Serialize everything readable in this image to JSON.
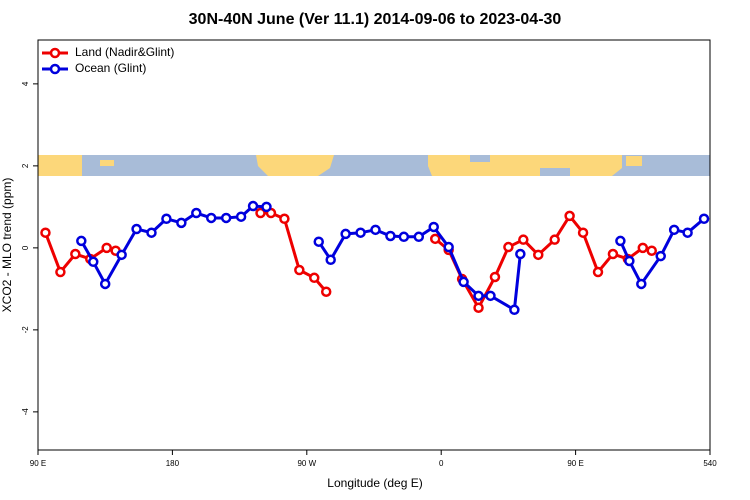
{
  "chart_data": {
    "type": "line",
    "title": "30N-40N June (Ver 11.1)   2014-09-06 to 2023-04-30",
    "x_label": "Longitude (deg E)",
    "y_label": "XCO2 - MLO trend (ppm)",
    "xlim": [
      90,
      540
    ],
    "xticks": [
      {
        "value": 90,
        "label": "90 E"
      },
      180,
      {
        "value": 270,
        "label": "90 W"
      },
      {
        "value": 360,
        "label": "0"
      },
      {
        "value": 450,
        "label": "90 E"
      },
      540
    ],
    "ylim": [
      -4.93,
      5.07
    ],
    "yticks": [
      -4,
      -2,
      0,
      2,
      4
    ],
    "legend": "top-left",
    "series": [
      {
        "name": "Land (Nadir&Glint)",
        "color": "#ee0000",
        "x": [
          95,
          105,
          115,
          125,
          136,
          142,
          null,
          239,
          246,
          255,
          265,
          275,
          283,
          null,
          356,
          365,
          374,
          385,
          396,
          405,
          415,
          425,
          436,
          446,
          455,
          465,
          475,
          485,
          495,
          501
        ],
        "values": [
          0.37,
          -0.59,
          -0.15,
          -0.27,
          0.0,
          -0.07,
          null,
          0.85,
          0.85,
          0.71,
          -0.54,
          -0.73,
          -1.07,
          null,
          0.22,
          -0.05,
          -0.76,
          -1.46,
          -0.71,
          0.02,
          0.2,
          -0.17,
          0.2,
          0.78,
          0.37,
          -0.59,
          -0.15,
          -0.27,
          0.0,
          -0.07
        ]
      },
      {
        "name": "Ocean (Glint)",
        "color": "#0000dd",
        "x": [
          119,
          127,
          135,
          146,
          156,
          166,
          176,
          186,
          196,
          206,
          216,
          226,
          234,
          243,
          null,
          278,
          286,
          296,
          306,
          316,
          326,
          335,
          345,
          355,
          365,
          375,
          385,
          393,
          409,
          413,
          null,
          480,
          486,
          494,
          507,
          516,
          525,
          536
        ],
        "values": [
          0.17,
          -0.34,
          -0.88,
          -0.17,
          0.46,
          0.37,
          0.71,
          0.61,
          0.85,
          0.73,
          0.73,
          0.76,
          1.02,
          1.0,
          null,
          0.15,
          -0.29,
          0.34,
          0.37,
          0.44,
          0.29,
          0.27,
          0.27,
          0.51,
          0.02,
          -0.83,
          -1.17,
          -1.17,
          -1.51,
          -0.15,
          null,
          0.17,
          -0.32,
          -0.88,
          -0.2,
          0.44,
          0.37,
          0.71
        ]
      }
    ]
  }
}
